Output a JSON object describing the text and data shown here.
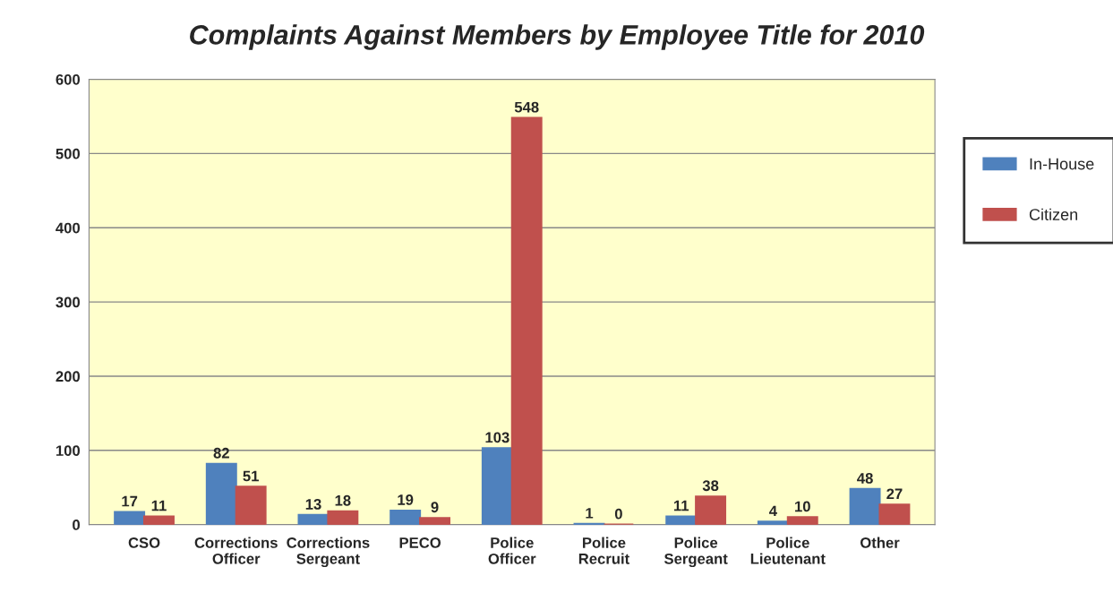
{
  "chart_data": {
    "type": "bar",
    "title": "Complaints Against Members by Employee Title for 2010",
    "categories": [
      "CSO",
      "Corrections\nOfficer",
      "Corrections\nSergeant",
      "PECO",
      "Police\nOfficer",
      "Police\nRecruit",
      "Police\nSergeant",
      "Police\nLieutenant",
      "Other"
    ],
    "series": [
      {
        "name": "In-House",
        "color": "#4f81bd",
        "values": [
          17,
          82,
          13,
          19,
          103,
          1,
          11,
          4,
          48
        ]
      },
      {
        "name": "Citizen",
        "color": "#c0504d",
        "values": [
          11,
          51,
          18,
          9,
          548,
          0,
          38,
          10,
          27
        ]
      }
    ],
    "ylim": [
      0,
      600
    ],
    "yticks": [
      0,
      100,
      200,
      300,
      400,
      500,
      600
    ],
    "grid": "y",
    "legend": "right",
    "data_labels": true
  }
}
